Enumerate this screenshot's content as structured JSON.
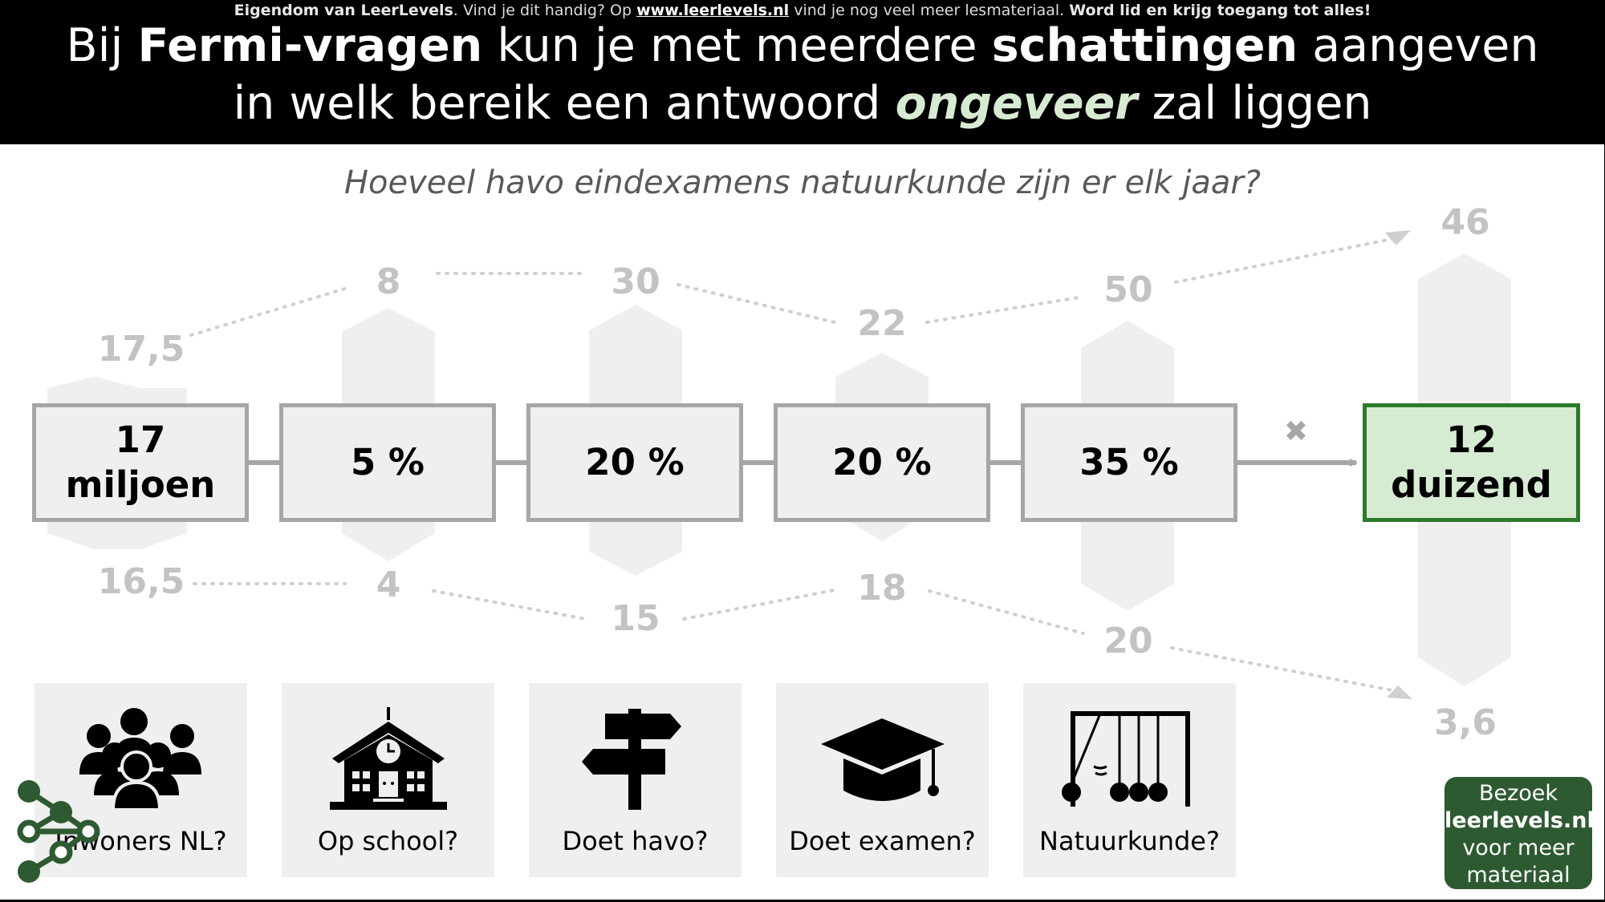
{
  "copyright": {
    "owner": "Eigendom van LeerLevels",
    "text1": ". Vind je dit handig? Op ",
    "url": "www.leerlevels.nl",
    "text2": " vind je nog veel meer lesmateriaal. ",
    "join": "Word lid en krijg toegang tot alles!"
  },
  "title": {
    "l1_a": "Bij ",
    "l1_b": "Fermi-vragen",
    "l1_c": " kun je met meerdere ",
    "l1_d": "schattingen",
    "l1_e": " aangeven",
    "l2_a": "in welk bereik een antwoord ",
    "l2_b": "ongeveer",
    "l2_c": " zal liggen"
  },
  "question": "Hoeveel havo eindexamens natuurkunde zijn er elk jaar?",
  "steps": [
    {
      "line1": "17",
      "line2": "miljoen",
      "high": "17,5",
      "low": "16,5",
      "label": "Inwoners NL?",
      "icon": "people-icon"
    },
    {
      "line1": "5 %",
      "line2": "",
      "high": "8",
      "low": "4",
      "label": "Op school?",
      "icon": "school-icon"
    },
    {
      "line1": "20 %",
      "line2": "",
      "high": "30",
      "low": "15",
      "label": "Doet havo?",
      "icon": "signpost-icon"
    },
    {
      "line1": "20 %",
      "line2": "",
      "high": "22",
      "low": "18",
      "label": "Doet examen?",
      "icon": "graduation-cap-icon"
    },
    {
      "line1": "35 %",
      "line2": "",
      "high": "50",
      "low": "20",
      "label": "Natuurkunde?",
      "icon": "newtons-cradle-icon"
    }
  ],
  "result": {
    "line1": "12",
    "line2": "duizend",
    "high": "46",
    "low": "3,6"
  },
  "multiply_symbol": "✖",
  "cta": {
    "line1": "Bezoek",
    "line2": "leerlevels.nl",
    "line3": "voor meer",
    "line4": "materiaal"
  },
  "colors": {
    "result_fill": "#d6ecd2",
    "result_border": "#2e7a2a",
    "estimate_gray": "#c3c3c3",
    "cta_green": "#2e5a32"
  }
}
